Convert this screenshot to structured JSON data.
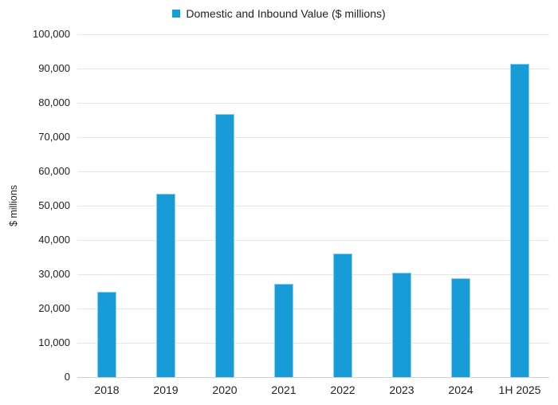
{
  "chart_data": {
    "type": "bar",
    "title": "",
    "legend": "Domestic and Inbound Value ($ millions)",
    "legend_position": "top-center",
    "categories": [
      "2018",
      "2019",
      "2020",
      "2021",
      "2022",
      "2023",
      "2024",
      "1H 2025"
    ],
    "values": [
      25000,
      53600,
      76800,
      27100,
      36000,
      30500,
      28800,
      91500
    ],
    "xlabel": "",
    "ylabel": "$ millions",
    "ylim": [
      0,
      100000
    ],
    "y_tick_step": 10000,
    "y_tick_labels": [
      "0",
      "10,000",
      "20,000",
      "30,000",
      "40,000",
      "50,000",
      "60,000",
      "70,000",
      "80,000",
      "90,000",
      "100,000"
    ],
    "grid": "horizontal",
    "colors": {
      "bar": "#189cd8",
      "bar_edge": "#8fd0ef",
      "gridline": "#e6e6e6",
      "axis_line": "#d0d0d0",
      "text": "#1f1f1f",
      "background": "#ffffff"
    }
  }
}
